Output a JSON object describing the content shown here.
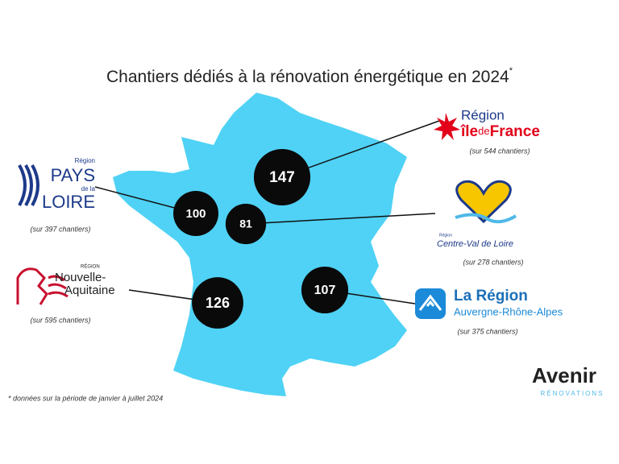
{
  "title": "Chantiers dédiés à la rénovation énergétique en 2024",
  "title_mark": "*",
  "regions": [
    {
      "value": 147,
      "logo": [
        "Région",
        "île",
        "de",
        "France"
      ],
      "note": "(sur 544 chantiers)"
    },
    {
      "value": 100,
      "logo": [
        "Région",
        "PAYS",
        "de la",
        "LOIRE"
      ],
      "note": "(sur 397 chantiers)"
    },
    {
      "value": 81,
      "logo": [
        "Région",
        "Centre-Val de Loire"
      ],
      "note": "(sur 278 chantiers)"
    },
    {
      "value": 126,
      "logo": [
        "RÉGION",
        "Nouvelle-",
        "Aquitaine"
      ],
      "note": "(sur 595 chantiers)"
    },
    {
      "value": 107,
      "logo": [
        "La Région",
        "Auvergne-Rhône-Alpes"
      ],
      "note": "(sur 375 chantiers)"
    }
  ],
  "brand": {
    "name": "Avenir",
    "tagline": "RÉNOVATIONS"
  },
  "footnote": "* données sur la période de janvier à juillet 2024"
}
